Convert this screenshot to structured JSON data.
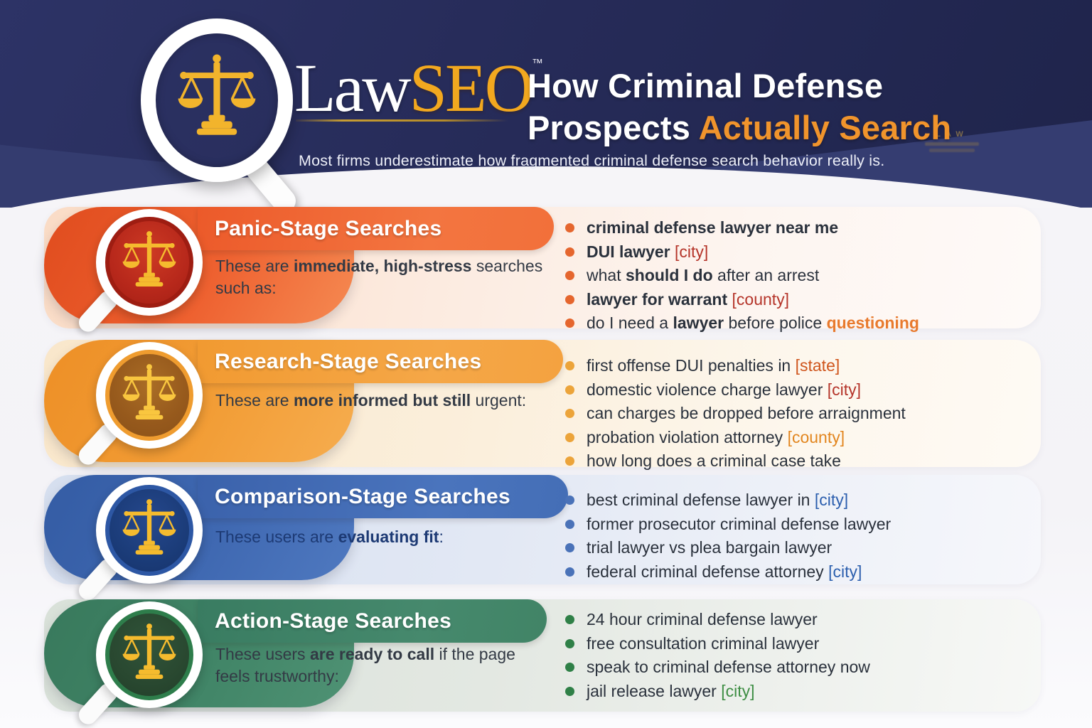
{
  "header": {
    "brand_law": "Law",
    "brand_seo": "SEO",
    "brand_tm": "™",
    "title_line1": "How Criminal Defense",
    "title_line2_white": "Prospects ",
    "title_line2_accent": "Actually Search",
    "subtitle": "Most firms underestimate how fragmented criminal defense search behavior really is.",
    "watermark": "LAW"
  },
  "colors": {
    "header_navy": "#262b58",
    "title_accent_orange": "#f0942c",
    "logo_gold": "#f2a81f",
    "scales_gold": "#f2b42c",
    "panic_orange": "#ee5f2c",
    "research_amber": "#f4a240",
    "comparison_blue": "#4068b1",
    "action_green": "#41846a"
  },
  "sections": [
    {
      "id": "panic",
      "title": "Panic-Stage Searches",
      "theme": "#ee5f2c",
      "desc": [
        {
          "t": "These are "
        },
        {
          "t": "immediate, high-stress",
          "s": "b"
        },
        {
          "t": " searches"
        },
        {
          "br": true
        },
        {
          "t": "such as:"
        }
      ],
      "items": [
        [
          {
            "t": "criminal defense lawyer near me",
            "s": "b"
          }
        ],
        [
          {
            "t": "DUI lawyer",
            "s": "b"
          },
          {
            "t": " "
          },
          {
            "t": "[city]",
            "s": "red"
          }
        ],
        [
          {
            "t": "what "
          },
          {
            "t": "should I do",
            "s": "b"
          },
          {
            "t": " after an arrest"
          }
        ],
        [
          {
            "t": "lawyer for warrant",
            "s": "b"
          },
          {
            "t": " "
          },
          {
            "t": "[county]",
            "s": "red"
          }
        ],
        [
          {
            "t": "do I need a "
          },
          {
            "t": "lawyer",
            "s": "b"
          },
          {
            "t": " before police "
          },
          {
            "t": "questioning",
            "s": "orangeb"
          }
        ]
      ]
    },
    {
      "id": "research",
      "title": "Research-Stage Searches",
      "theme": "#f4a240",
      "desc": [
        {
          "t": "These are "
        },
        {
          "t": "more informed but still",
          "s": "b"
        },
        {
          "t": " urgent:"
        }
      ],
      "items": [
        [
          {
            "t": "first offense DUI penalties in "
          },
          {
            "t": "[state]",
            "s": "orangered"
          }
        ],
        [
          {
            "t": "domestic violence charge lawyer "
          },
          {
            "t": "[city]",
            "s": "red"
          }
        ],
        [
          {
            "t": "can charges be dropped before arraignment"
          }
        ],
        [
          {
            "t": "probation violation attorney "
          },
          {
            "t": "[county]",
            "s": "orange"
          }
        ],
        [
          {
            "t": "how long does a criminal case take"
          }
        ]
      ]
    },
    {
      "id": "comparison",
      "title": "Comparison-Stage Searches",
      "theme": "#4068b1",
      "desc": [
        {
          "t": "These users are "
        },
        {
          "t": "evaluating fit",
          "s": "b"
        },
        {
          "t": ":"
        }
      ],
      "items": [
        [
          {
            "t": "best criminal defense lawyer in "
          },
          {
            "t": "[city]",
            "s": "blue"
          }
        ],
        [
          {
            "t": "former prosecutor criminal defense lawyer"
          }
        ],
        [
          {
            "t": "trial lawyer vs plea bargain lawyer"
          }
        ],
        [
          {
            "t": "federal criminal defense attorney "
          },
          {
            "t": "[city]",
            "s": "blue"
          }
        ]
      ]
    },
    {
      "id": "action",
      "title": "Action-Stage Searches",
      "theme": "#41846a",
      "desc": [
        {
          "t": "These users "
        },
        {
          "t": "are ready to call",
          "s": "b"
        },
        {
          "t": " if the page"
        },
        {
          "br": true
        },
        {
          "t": "feels trustworthy:"
        }
      ],
      "items": [
        [
          {
            "t": "24 hour criminal defense lawyer"
          }
        ],
        [
          {
            "t": "free consultation criminal lawyer"
          }
        ],
        [
          {
            "t": "speak to criminal defense attorney now"
          }
        ],
        [
          {
            "t": "jail release lawyer "
          },
          {
            "t": "[city]",
            "s": "green"
          }
        ]
      ]
    }
  ]
}
